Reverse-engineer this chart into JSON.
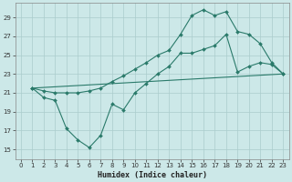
{
  "title": "",
  "xlabel": "Humidex (Indice chaleur)",
  "bg_color": "#cce8e8",
  "grid_color": "#aacccc",
  "line_color": "#2a7a6a",
  "xlim": [
    -0.5,
    23.5
  ],
  "ylim": [
    14,
    30.5
  ],
  "xticks": [
    0,
    1,
    2,
    3,
    4,
    5,
    6,
    7,
    8,
    9,
    10,
    11,
    12,
    13,
    14,
    15,
    16,
    17,
    18,
    19,
    20,
    21,
    22,
    23
  ],
  "yticks": [
    15,
    17,
    19,
    21,
    23,
    25,
    27,
    29
  ],
  "curve1_x": [
    1,
    2,
    3,
    4,
    5,
    6,
    7,
    8,
    9,
    10,
    11,
    12,
    13,
    14,
    15,
    16,
    17,
    18,
    19,
    20,
    21,
    22,
    23
  ],
  "curve1_y": [
    21.5,
    20.5,
    20.2,
    17.2,
    16.0,
    15.2,
    16.5,
    19.8,
    19.2,
    21.0,
    22.0,
    23.0,
    23.8,
    25.2,
    25.2,
    25.6,
    26.0,
    27.2,
    23.2,
    23.8,
    24.2,
    24.0,
    23.0
  ],
  "curve2_x": [
    1,
    2,
    3,
    4,
    5,
    6,
    7,
    8,
    9,
    10,
    11,
    12,
    13,
    14,
    15,
    16,
    17,
    18,
    19,
    20,
    21,
    22,
    23
  ],
  "curve2_y": [
    21.5,
    21.2,
    21.0,
    21.0,
    21.0,
    21.2,
    21.5,
    22.2,
    22.8,
    23.5,
    24.2,
    25.0,
    25.5,
    27.2,
    29.2,
    29.8,
    29.2,
    29.6,
    27.5,
    27.2,
    26.2,
    24.2,
    23.0
  ],
  "curve3_x": [
    1,
    23
  ],
  "curve3_y": [
    21.5,
    23.0
  ]
}
